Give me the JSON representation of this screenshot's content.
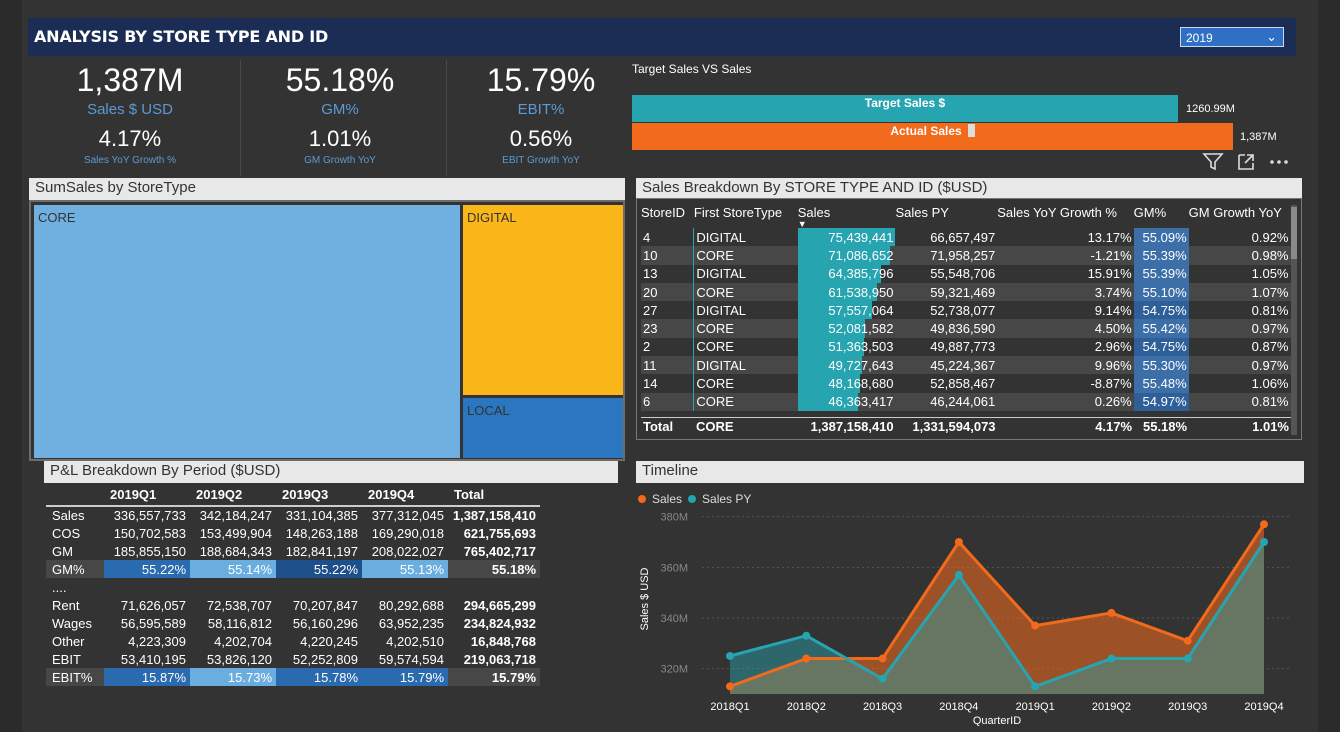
{
  "header": {
    "title": "ANALYSIS BY STORE TYPE AND ID",
    "year_selected": "2019"
  },
  "kpis": [
    {
      "value": "1,387M",
      "label": "Sales $ USD",
      "growth_value": "4.17%",
      "growth_label": "Sales YoY Growth %"
    },
    {
      "value": "55.18%",
      "label": "GM%",
      "growth_value": "1.01%",
      "growth_label": "GM Growth YoY"
    },
    {
      "value": "15.79%",
      "label": "EBIT%",
      "growth_value": "0.56%",
      "growth_label": "EBIT Growth YoY"
    }
  ],
  "target_vs_sales": {
    "title": "Target Sales VS Sales",
    "target_label": "Target Sales $",
    "target_value": "1260.99M",
    "actual_label": "Actual Sales",
    "actual_value": "1,387M"
  },
  "treemap": {
    "title": "SumSales by StoreType",
    "cells": [
      {
        "label": "CORE",
        "color": "#6fb0e0"
      },
      {
        "label": "DIGITAL",
        "color": "#fbb71a"
      },
      {
        "label": "LOCAL",
        "color": "#2a77c0"
      }
    ]
  },
  "sales_breakdown": {
    "title": "Sales Breakdown By STORE TYPE AND ID ($USD)",
    "columns": [
      "StoreID",
      "First StoreType",
      "Sales",
      "Sales PY",
      "Sales YoY Growth %",
      "GM%",
      "GM Growth YoY"
    ],
    "rows": [
      {
        "id": "4",
        "type": "DIGITAL",
        "sales": "75,439,441",
        "sales_num": 75439441,
        "py": "66,657,497",
        "yoy": "13.17%",
        "gm": "55.09%",
        "gmg": "0.92%"
      },
      {
        "id": "10",
        "type": "CORE",
        "sales": "71,086,652",
        "sales_num": 71086652,
        "py": "71,958,257",
        "yoy": "-1.21%",
        "gm": "55.39%",
        "gmg": "0.98%"
      },
      {
        "id": "13",
        "type": "DIGITAL",
        "sales": "64,385,796",
        "sales_num": 64385796,
        "py": "55,548,706",
        "yoy": "15.91%",
        "gm": "55.39%",
        "gmg": "1.05%"
      },
      {
        "id": "20",
        "type": "CORE",
        "sales": "61,538,950",
        "sales_num": 61538950,
        "py": "59,321,469",
        "yoy": "3.74%",
        "gm": "55.10%",
        "gmg": "1.07%"
      },
      {
        "id": "27",
        "type": "DIGITAL",
        "sales": "57,557,064",
        "sales_num": 57557064,
        "py": "52,738,077",
        "yoy": "9.14%",
        "gm": "54.75%",
        "gmg": "0.81%"
      },
      {
        "id": "23",
        "type": "CORE",
        "sales": "52,081,582",
        "sales_num": 52081582,
        "py": "49,836,590",
        "yoy": "4.50%",
        "gm": "55.42%",
        "gmg": "0.97%"
      },
      {
        "id": "2",
        "type": "CORE",
        "sales": "51,363,503",
        "sales_num": 51363503,
        "py": "49,887,773",
        "yoy": "2.96%",
        "gm": "54.75%",
        "gmg": "0.87%"
      },
      {
        "id": "11",
        "type": "DIGITAL",
        "sales": "49,727,643",
        "sales_num": 49727643,
        "py": "45,224,367",
        "yoy": "9.96%",
        "gm": "55.30%",
        "gmg": "0.97%"
      },
      {
        "id": "14",
        "type": "CORE",
        "sales": "48,168,680",
        "sales_num": 48168680,
        "py": "52,858,467",
        "yoy": "-8.87%",
        "gm": "55.48%",
        "gmg": "1.06%"
      },
      {
        "id": "6",
        "type": "CORE",
        "sales": "46,363,417",
        "sales_num": 46363417,
        "py": "46,244,061",
        "yoy": "0.26%",
        "gm": "54.97%",
        "gmg": "0.81%"
      }
    ],
    "total": {
      "label": "Total",
      "type": "CORE",
      "sales": "1,387,158,410",
      "py": "1,331,594,073",
      "yoy": "4.17%",
      "gm": "55.18%",
      "gmg": "1.01%"
    }
  },
  "pl": {
    "title": "P&L Breakdown By Period ($USD)",
    "columns": [
      "2019Q1",
      "2019Q2",
      "2019Q3",
      "2019Q4",
      "Total"
    ],
    "rows": [
      {
        "label": "Sales",
        "values": [
          "336,557,733",
          "342,184,247",
          "331,104,385",
          "377,312,045"
        ],
        "total": "1,387,158,410"
      },
      {
        "label": "COS",
        "values": [
          "150,702,583",
          "153,499,904",
          "148,263,188",
          "169,290,018"
        ],
        "total": "621,755,693"
      },
      {
        "label": "GM",
        "values": [
          "185,855,150",
          "188,684,343",
          "182,841,197",
          "208,022,027"
        ],
        "total": "765,402,717"
      },
      {
        "label": "GM%",
        "values": [
          "55.22%",
          "55.14%",
          "55.22%",
          "55.13%"
        ],
        "total": "55.18%"
      },
      {
        "label": "....",
        "values": [
          "",
          "",
          "",
          ""
        ],
        "total": ""
      },
      {
        "label": "Rent",
        "values": [
          "71,626,057",
          "72,538,707",
          "70,207,847",
          "80,292,688"
        ],
        "total": "294,665,299"
      },
      {
        "label": "Wages",
        "values": [
          "56,595,589",
          "58,116,812",
          "56,160,296",
          "63,952,235"
        ],
        "total": "234,824,932"
      },
      {
        "label": "Other",
        "values": [
          "4,223,309",
          "4,202,704",
          "4,220,245",
          "4,202,510"
        ],
        "total": "16,848,768"
      },
      {
        "label": "EBIT",
        "values": [
          "53,410,195",
          "53,826,120",
          "52,252,809",
          "59,574,594"
        ],
        "total": "219,063,718"
      },
      {
        "label": "EBIT%",
        "values": [
          "15.87%",
          "15.73%",
          "15.78%",
          "15.79%"
        ],
        "total": "15.79%"
      }
    ]
  },
  "chart_data": {
    "type": "area",
    "title": "Timeline",
    "xlabel": "QuarterID",
    "ylabel": "Sales $ USD",
    "categories": [
      "2018Q1",
      "2018Q2",
      "2018Q3",
      "2018Q4",
      "2019Q1",
      "2019Q2",
      "2019Q3",
      "2019Q4"
    ],
    "yticks": [
      "320M",
      "340M",
      "360M",
      "380M"
    ],
    "ylim": [
      310,
      385
    ],
    "series": [
      {
        "name": "Sales",
        "color": "#f26a1b",
        "values": [
          313,
          324,
          324,
          370,
          337,
          342,
          331,
          377
        ]
      },
      {
        "name": "Sales PY",
        "color": "#26a4b0",
        "values": [
          325,
          333,
          316,
          357,
          313,
          324,
          324,
          370
        ]
      }
    ]
  },
  "icons": {
    "filter": "filter-icon",
    "focus": "focus-mode-icon",
    "more": "more-options-icon"
  }
}
